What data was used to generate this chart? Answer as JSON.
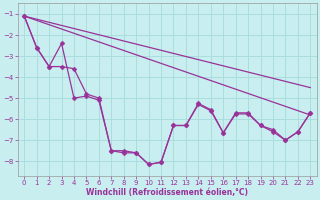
{
  "background_color": "#c8eef0",
  "line_color": "#993399",
  "grid_color": "#aadddd",
  "xlabel": "Windchill (Refroidissement éolien,°C)",
  "xlim": [
    -0.5,
    23.5
  ],
  "ylim": [
    -8.7,
    -0.5
  ],
  "yticks": [
    -8,
    -7,
    -6,
    -5,
    -4,
    -3,
    -2,
    -1
  ],
  "xticks": [
    0,
    1,
    2,
    3,
    4,
    5,
    6,
    7,
    8,
    9,
    10,
    11,
    12,
    13,
    14,
    15,
    16,
    17,
    18,
    19,
    20,
    21,
    22,
    23
  ],
  "trend1_x": [
    0,
    23
  ],
  "trend1_y": [
    -1.1,
    -4.5
  ],
  "trend2_x": [
    0,
    23
  ],
  "trend2_y": [
    -1.1,
    -5.8
  ],
  "zigzag1_x": [
    0,
    1,
    2,
    3,
    4,
    5,
    6,
    7,
    8,
    9,
    10,
    11,
    12,
    13,
    14,
    15,
    16,
    17,
    18,
    19,
    20,
    21,
    22,
    23
  ],
  "zigzag1_y": [
    -1.1,
    -2.6,
    -3.5,
    -2.4,
    -5.0,
    -4.9,
    -5.1,
    -7.5,
    -7.5,
    -7.6,
    -8.15,
    -8.05,
    -6.3,
    -6.3,
    -5.25,
    -5.55,
    -6.65,
    -5.7,
    -5.7,
    -6.3,
    -6.5,
    -7.0,
    -6.6,
    -5.7
  ],
  "zigzag2_x": [
    0,
    1,
    2,
    3,
    4,
    5,
    6,
    7,
    8,
    9,
    10,
    11,
    12,
    13,
    14,
    15,
    16,
    17,
    18,
    19,
    20,
    21,
    22,
    23
  ],
  "zigzag2_y": [
    -1.1,
    -2.6,
    -3.5,
    -3.5,
    -3.6,
    -4.8,
    -5.0,
    -7.5,
    -7.6,
    -7.6,
    -8.15,
    -8.05,
    -6.3,
    -6.3,
    -5.3,
    -5.6,
    -6.65,
    -5.75,
    -5.75,
    -6.3,
    -6.6,
    -7.0,
    -6.6,
    -5.7
  ]
}
